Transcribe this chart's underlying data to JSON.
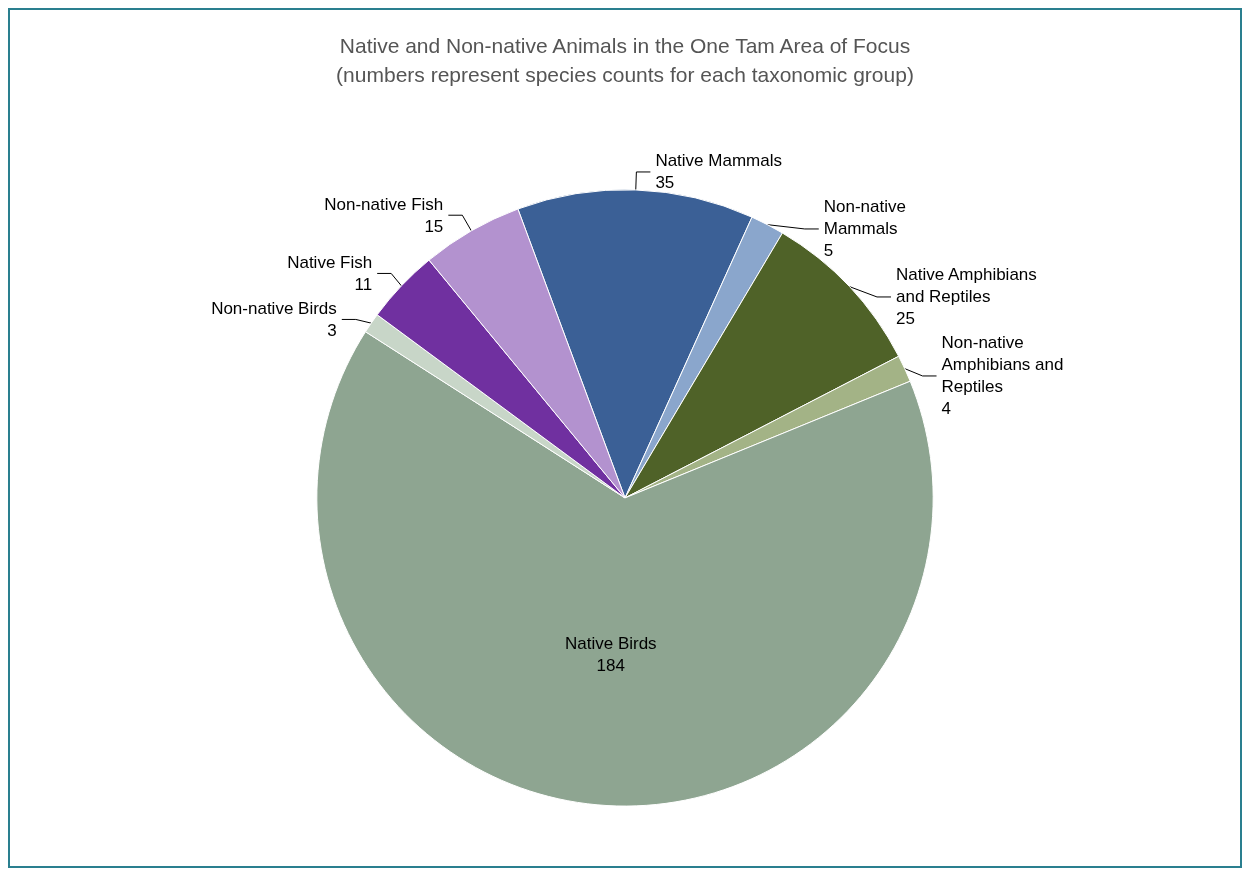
{
  "chart_data": {
    "type": "pie",
    "title": "Native and Non-native Animals in the One Tam Area of Focus",
    "subtitle": "(numbers represent species counts for each taxonomic group)",
    "categories": [
      "Native Mammals",
      "Non-native Mammals",
      "Native Amphibians and Reptiles",
      "Non-native Amphibians and Reptiles",
      "Native Birds",
      "Non-native Birds",
      "Native Fish",
      "Non-native Fish"
    ],
    "values": [
      35,
      5,
      25,
      4,
      184,
      3,
      11,
      15
    ],
    "colors": [
      "#3b6096",
      "#8aa6cc",
      "#4f6228",
      "#a3b386",
      "#8ea591",
      "#c8d6c8",
      "#7030a0",
      "#b392cf"
    ],
    "data_labels": true,
    "legend": false
  }
}
